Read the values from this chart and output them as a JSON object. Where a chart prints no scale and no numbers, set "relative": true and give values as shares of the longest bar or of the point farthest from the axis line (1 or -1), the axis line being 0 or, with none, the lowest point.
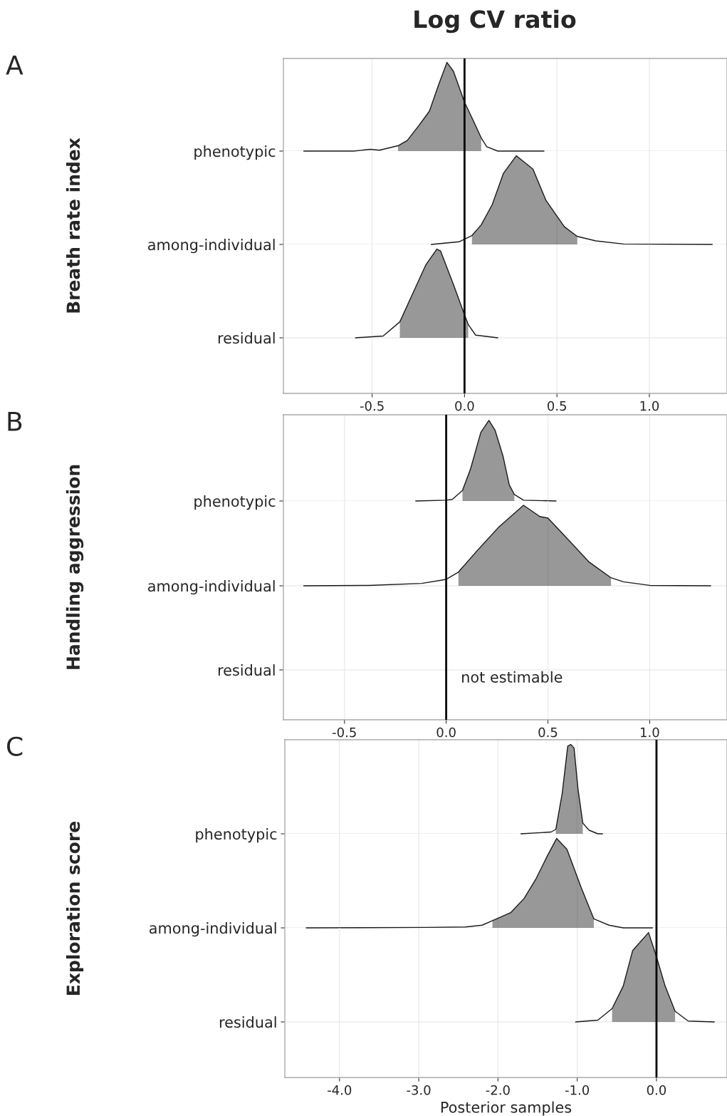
{
  "chart_data": [
    {
      "type": "line",
      "relative": true,
      "title": "Log CV ratio",
      "ylabel": "Breath rate index",
      "annotations": [
        "A"
      ],
      "xlim": [
        -0.98,
        1.42
      ],
      "xticks": [
        {
          "value": -0.5,
          "label": null
        },
        {
          "value": 0,
          "label": null
        },
        {
          "value": 0.5,
          "label": null
        },
        {
          "value": 1,
          "label": null
        }
      ],
      "tick_labels": false,
      "grid": true,
      "ref_lines": [
        {
          "axis": "x",
          "value": 0,
          "color": "#000000"
        }
      ],
      "series": [
        {
          "name": "phenotypic",
          "color": "#1a1a1a",
          "x": [
            -0.87,
            -0.6,
            -0.51,
            -0.46,
            -0.36,
            -0.31,
            -0.25,
            -0.19,
            -0.14,
            -0.095,
            -0.06,
            0,
            0.046,
            0.09,
            0.12,
            0.18,
            0.43
          ],
          "values": [
            0,
            0,
            0.02,
            0.01,
            0.06,
            0.12,
            0.28,
            0.45,
            0.75,
            1.0,
            0.9,
            0.55,
            0.35,
            0.15,
            0.05,
            0,
            0
          ],
          "lower": [
            null,
            null,
            null,
            null,
            0,
            0,
            0,
            0,
            0,
            0,
            0,
            0,
            0,
            0,
            null,
            null,
            null
          ],
          "upper": [
            null,
            null,
            null,
            null,
            0.06,
            0.12,
            0.28,
            0.45,
            0.75,
            1.0,
            0.9,
            0.55,
            0.35,
            0.15,
            null,
            null,
            null
          ]
        }
      ]
    },
    {
      "type": "line",
      "relative": true,
      "xlim": [
        -0.98,
        1.42
      ],
      "xticks": [
        {
          "value": -0.5,
          "label": null
        },
        {
          "value": 0,
          "label": null
        },
        {
          "value": 0.5,
          "label": null
        },
        {
          "value": 1,
          "label": null
        }
      ],
      "tick_labels": false,
      "grid": true,
      "ref_lines": [
        {
          "axis": "x",
          "value": 0,
          "color": "#000000"
        }
      ],
      "series": [
        {
          "name": "among-individual",
          "color": "#1a1a1a",
          "x": [
            -0.18,
            -0.03,
            0.04,
            0.09,
            0.15,
            0.21,
            0.28,
            0.37,
            0.44,
            0.54,
            0.61,
            0.71,
            0.86,
            1.34
          ],
          "values": [
            0,
            0.03,
            0.1,
            0.22,
            0.45,
            0.8,
            1.0,
            0.85,
            0.5,
            0.2,
            0.09,
            0.04,
            0.005,
            0
          ],
          "lower": [
            null,
            null,
            0,
            0,
            0,
            0,
            0,
            0,
            0,
            0,
            0,
            null,
            null,
            null
          ],
          "upper": [
            null,
            null,
            0.1,
            0.22,
            0.45,
            0.8,
            1.0,
            0.85,
            0.5,
            0.2,
            0.09,
            null,
            null,
            null
          ]
        }
      ]
    },
    {
      "type": "line",
      "relative": true,
      "xlim": [
        -0.98,
        1.42
      ],
      "xticks": [
        {
          "value": -0.5,
          "label": "-0.5"
        },
        {
          "value": 0,
          "label": "0.0"
        },
        {
          "value": 0.5,
          "label": "0.5"
        },
        {
          "value": 1,
          "label": "1.0"
        }
      ],
      "tick_labels": "x",
      "grid": true,
      "ref_lines": [
        {
          "axis": "x",
          "value": 0,
          "color": "#000000"
        }
      ],
      "series": [
        {
          "name": "residual",
          "color": "#1a1a1a",
          "x": [
            -0.59,
            -0.44,
            -0.35,
            -0.28,
            -0.21,
            -0.15,
            -0.13,
            -0.06,
            0,
            0.02,
            0.06,
            0.18
          ],
          "values": [
            0,
            0.02,
            0.18,
            0.5,
            0.82,
            1.0,
            0.98,
            0.6,
            0.26,
            0.15,
            0.03,
            0
          ],
          "lower": [
            null,
            null,
            0,
            0,
            0,
            0,
            0,
            0,
            0,
            0,
            null,
            null
          ],
          "upper": [
            null,
            null,
            0.18,
            0.5,
            0.82,
            1.0,
            0.98,
            0.6,
            0.26,
            0.15,
            null,
            null
          ]
        }
      ]
    },
    {
      "type": "line",
      "relative": true,
      "ylabel": "Handling aggression",
      "annotations": [
        "B"
      ],
      "xlim": [
        -0.8,
        1.38
      ],
      "xticks": [
        {
          "value": -0.5,
          "label": null
        },
        {
          "value": 0,
          "label": null
        },
        {
          "value": 0.5,
          "label": null
        },
        {
          "value": 1,
          "label": null
        }
      ],
      "tick_labels": false,
      "grid": true,
      "ref_lines": [
        {
          "axis": "x",
          "value": 0,
          "color": "#000000"
        }
      ],
      "series": [
        {
          "name": "phenotypic",
          "color": "#1a1a1a",
          "x": [
            -0.15,
            0,
            0.03,
            0.08,
            0.12,
            0.17,
            0.21,
            0.24,
            0.28,
            0.31,
            0.335,
            0.38,
            0.54
          ],
          "values": [
            0,
            0.01,
            0.02,
            0.13,
            0.4,
            0.85,
            1.0,
            0.88,
            0.55,
            0.2,
            0.08,
            0.01,
            0
          ],
          "lower": [
            null,
            null,
            null,
            0,
            0,
            0,
            0,
            0,
            0,
            0,
            0,
            null,
            null
          ],
          "upper": [
            null,
            null,
            null,
            0.13,
            0.4,
            0.85,
            1.0,
            0.88,
            0.55,
            0.2,
            0.08,
            null,
            null
          ]
        }
      ]
    },
    {
      "type": "line",
      "relative": true,
      "annotations": [
        "residual",
        "not estimable"
      ],
      "xlim": [
        -0.8,
        1.38
      ],
      "xticks": [
        {
          "value": -0.5,
          "label": "-0.5"
        },
        {
          "value": 0,
          "label": "0.0"
        },
        {
          "value": 0.5,
          "label": "0.5"
        },
        {
          "value": 1,
          "label": "1.0"
        }
      ],
      "tick_labels": "x",
      "grid": true,
      "ref_lines": [
        {
          "axis": "x",
          "value": 0,
          "color": "#000000"
        }
      ],
      "series": [
        {
          "name": "among-individual",
          "color": "#1a1a1a",
          "x": [
            -0.7,
            -0.38,
            -0.12,
            0,
            0.06,
            0.15,
            0.255,
            0.38,
            0.46,
            0.5,
            0.59,
            0.7,
            0.81,
            0.87,
            1.0,
            1.3
          ],
          "values": [
            0,
            0.005,
            0.03,
            0.08,
            0.17,
            0.43,
            0.72,
            1.0,
            0.86,
            0.84,
            0.6,
            0.3,
            0.1,
            0.05,
            0.005,
            0
          ],
          "lower": [
            null,
            null,
            null,
            null,
            0,
            0,
            0,
            0,
            0,
            0,
            0,
            0,
            0,
            null,
            null,
            null
          ],
          "upper": [
            null,
            null,
            null,
            null,
            0.17,
            0.43,
            0.72,
            1.0,
            0.86,
            0.84,
            0.6,
            0.3,
            0.1,
            null,
            null,
            null
          ]
        }
      ]
    },
    {
      "type": "line",
      "relative": true,
      "ylabel": "Exploration score",
      "annotations": [
        "C"
      ],
      "xlim": [
        -4.69,
        0.89
      ],
      "xticks": [
        {
          "value": -4,
          "label": null
        },
        {
          "value": -3,
          "label": null
        },
        {
          "value": -2,
          "label": null
        },
        {
          "value": -1,
          "label": null
        },
        {
          "value": 0,
          "label": null
        }
      ],
      "tick_labels": false,
      "grid": true,
      "ref_lines": [
        {
          "axis": "x",
          "value": 0,
          "color": "#000000"
        }
      ],
      "series": [
        {
          "name": "phenotypic",
          "color": "#1a1a1a",
          "x": [
            -1.71,
            -1.33,
            -1.27,
            -1.19,
            -1.12,
            -1.08,
            -1.04,
            -0.99,
            -0.93,
            -0.85,
            -0.74,
            -0.68
          ],
          "values": [
            0,
            0.02,
            0.05,
            0.45,
            0.98,
            1.0,
            0.96,
            0.5,
            0.12,
            0.04,
            0,
            0
          ],
          "lower": [
            null,
            null,
            0,
            0,
            0,
            0,
            0,
            0,
            0,
            null,
            null,
            null
          ],
          "upper": [
            null,
            null,
            0.05,
            0.45,
            0.98,
            1.0,
            0.96,
            0.5,
            0.12,
            null,
            null,
            null
          ]
        }
      ]
    },
    {
      "type": "line",
      "relative": true,
      "xlim": [
        -4.69,
        0.89
      ],
      "xticks": [
        {
          "value": -4,
          "label": null
        },
        {
          "value": -3,
          "label": null
        },
        {
          "value": -2,
          "label": null
        },
        {
          "value": -1,
          "label": null
        },
        {
          "value": 0,
          "label": null
        }
      ],
      "tick_labels": false,
      "grid": true,
      "ref_lines": [
        {
          "axis": "x",
          "value": 0,
          "color": "#000000"
        }
      ],
      "series": [
        {
          "name": "among-individual",
          "color": "#1a1a1a",
          "x": [
            -4.42,
            -2.91,
            -2.41,
            -2.2,
            -2.07,
            -1.84,
            -1.67,
            -1.52,
            -1.38,
            -1.26,
            -1.13,
            -0.95,
            -0.79,
            -0.6,
            -0.42,
            -0.05
          ],
          "values": [
            0,
            0.005,
            0.01,
            0.03,
            0.08,
            0.17,
            0.33,
            0.55,
            0.8,
            1.0,
            0.88,
            0.45,
            0.1,
            0.03,
            0,
            0
          ],
          "lower": [
            null,
            null,
            null,
            null,
            0,
            0,
            0,
            0,
            0,
            0,
            0,
            0,
            0,
            null,
            null,
            null
          ],
          "upper": [
            null,
            null,
            null,
            null,
            0.08,
            0.17,
            0.33,
            0.55,
            0.8,
            1.0,
            0.88,
            0.45,
            0.1,
            null,
            null,
            null
          ]
        }
      ]
    },
    {
      "type": "line",
      "relative": true,
      "xlabel": "Posterior samples",
      "xlim": [
        -4.69,
        0.89
      ],
      "xticks": [
        {
          "value": -4,
          "label": "-4.0"
        },
        {
          "value": -3,
          "label": "-3.0"
        },
        {
          "value": -2,
          "label": "-2.0"
        },
        {
          "value": -1,
          "label": "-1.0"
        },
        {
          "value": 0,
          "label": "0.0"
        }
      ],
      "tick_labels": "x",
      "grid": true,
      "ref_lines": [
        {
          "axis": "x",
          "value": 0,
          "color": "#000000"
        }
      ],
      "series": [
        {
          "name": "residual",
          "color": "#1a1a1a",
          "x": [
            -1.02,
            -0.74,
            -0.56,
            -0.42,
            -0.3,
            -0.1,
            0,
            0.11,
            0.235,
            0.4,
            0.73
          ],
          "values": [
            0,
            0.02,
            0.15,
            0.4,
            0.8,
            1.0,
            0.73,
            0.4,
            0.12,
            0.01,
            0
          ],
          "lower": [
            null,
            null,
            0,
            0,
            0,
            0,
            0,
            0,
            0,
            null,
            null
          ],
          "upper": [
            null,
            null,
            0.15,
            0.4,
            0.8,
            1.0,
            0.73,
            0.4,
            0.12,
            null,
            null
          ]
        }
      ]
    }
  ]
}
